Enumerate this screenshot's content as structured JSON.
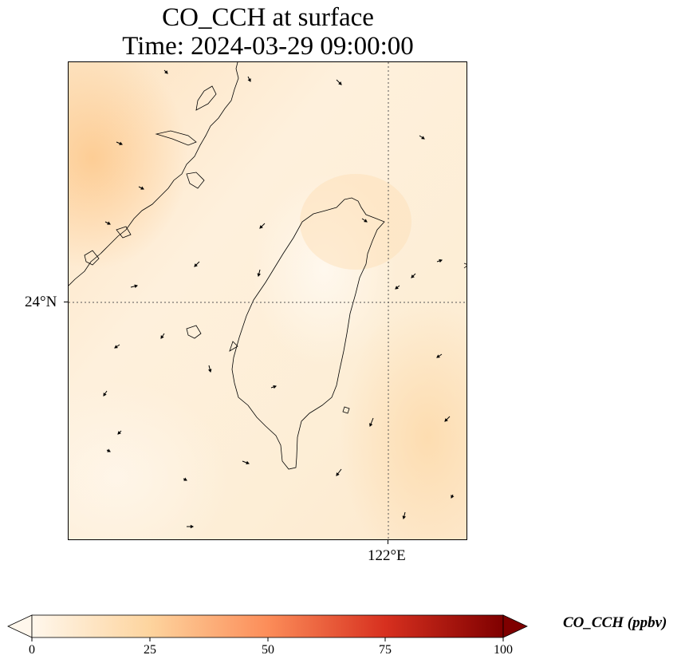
{
  "title": {
    "line1": "CO_CCH at surface",
    "line2": "Time: 2024-03-29 09:00:00"
  },
  "map": {
    "lat_label": "24°N",
    "lon_label": "122°E",
    "gridlines": "dotted",
    "coastline": "Taiwan and Fujian coast",
    "wind_vectors": "black arrows"
  },
  "colorbar": {
    "label": "CO_CCH (ppbv)",
    "ticks": [
      "0",
      "25",
      "50",
      "75",
      "100"
    ],
    "min": 0,
    "max": 100,
    "extend": "both",
    "colormap": [
      "#fff7ec",
      "#fdd49e",
      "#fc8d59",
      "#d7301f",
      "#7f0000"
    ]
  }
}
